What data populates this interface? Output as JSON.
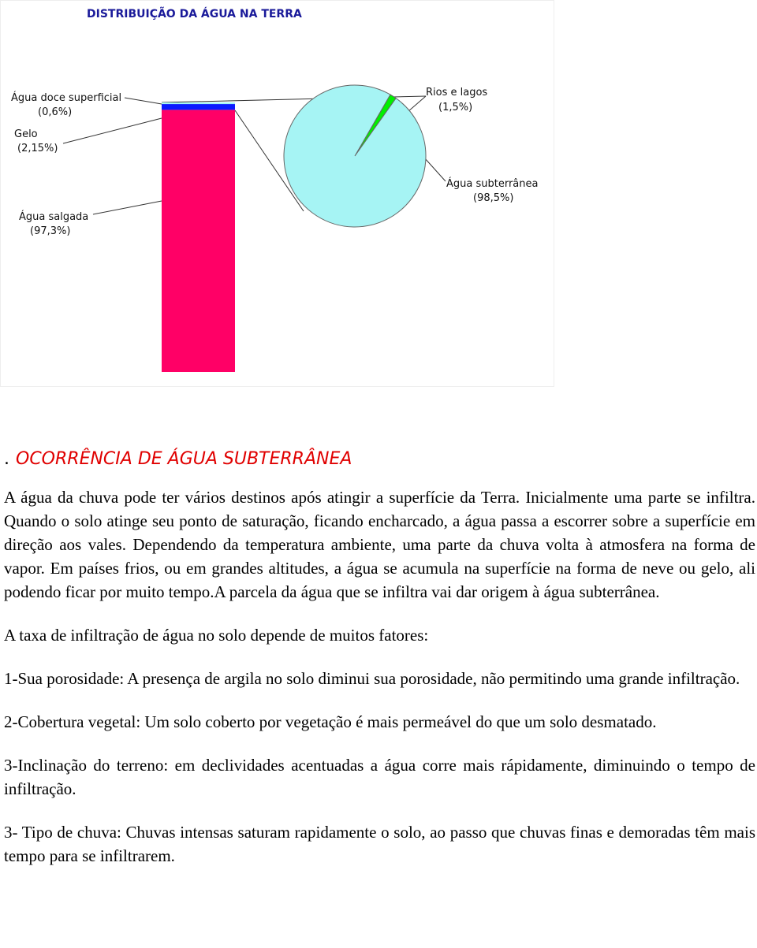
{
  "chart_data": [
    {
      "type": "bar",
      "stacked": true,
      "title": "DISTRIBUIÇÃO DA ÁGUA NA TERRA",
      "categories": [
        null
      ],
      "series": [
        {
          "name": "Água salgada",
          "color": "#ff0066",
          "values": [
            97.3
          ],
          "value_labels": [
            "(97,3%)"
          ]
        },
        {
          "name": "Gelo",
          "color": "#0a1aff",
          "values": [
            2.15
          ],
          "value_labels": [
            "(2,15%)"
          ]
        },
        {
          "name": "Água doce superficial",
          "color": "#a6f4f4",
          "values": [
            0.6
          ],
          "value_labels": [
            "(0,6%)"
          ]
        }
      ]
    },
    {
      "type": "pie",
      "categories": [
        "Rios e lagos",
        "Água subterrânea"
      ],
      "values": [
        1.5,
        98.5
      ],
      "value_labels": [
        "(1,5%)",
        "(98,5%)"
      ],
      "colors": [
        "#00f000",
        "#a6f4f4"
      ]
    }
  ],
  "document": {
    "heading_prefix": ".",
    "heading": "OCORRÊNCIA DE ÁGUA SUBTERRÂNEA",
    "paragraphs": [
      "A água da chuva pode ter vários destinos após atingir a superfície da Terra. Inicialmente uma parte se infiltra. Quando o solo atinge seu ponto de saturação, ficando encharcado, a água passa a escorrer sobre a superfície em direção aos vales. Dependendo da temperatura ambiente, uma parte da chuva volta à atmosfera na forma de vapor. Em países frios, ou em grandes altitudes, a água se acumula na superfície na forma de neve ou gelo, ali podendo ficar por muito tempo.A parcela da água que se infiltra vai dar origem à água subterrânea.",
      "A taxa de infiltração de água no solo depende de muitos fatores:",
      "1-Sua porosidade: A presença de argila no solo diminui sua porosidade, não permitindo uma grande infiltração.",
      "2-Cobertura vegetal: Um solo coberto por vegetação é mais permeável do que um solo desmatado.",
      "3-Inclinação do terreno: em declividades acentuadas a água corre mais rápidamente, diminuindo o tempo de infiltração.",
      "3- Tipo de chuva: Chuvas intensas saturam rapidamente o solo, ao passo que chuvas finas e demoradas têm mais tempo para se infiltrarem."
    ]
  }
}
